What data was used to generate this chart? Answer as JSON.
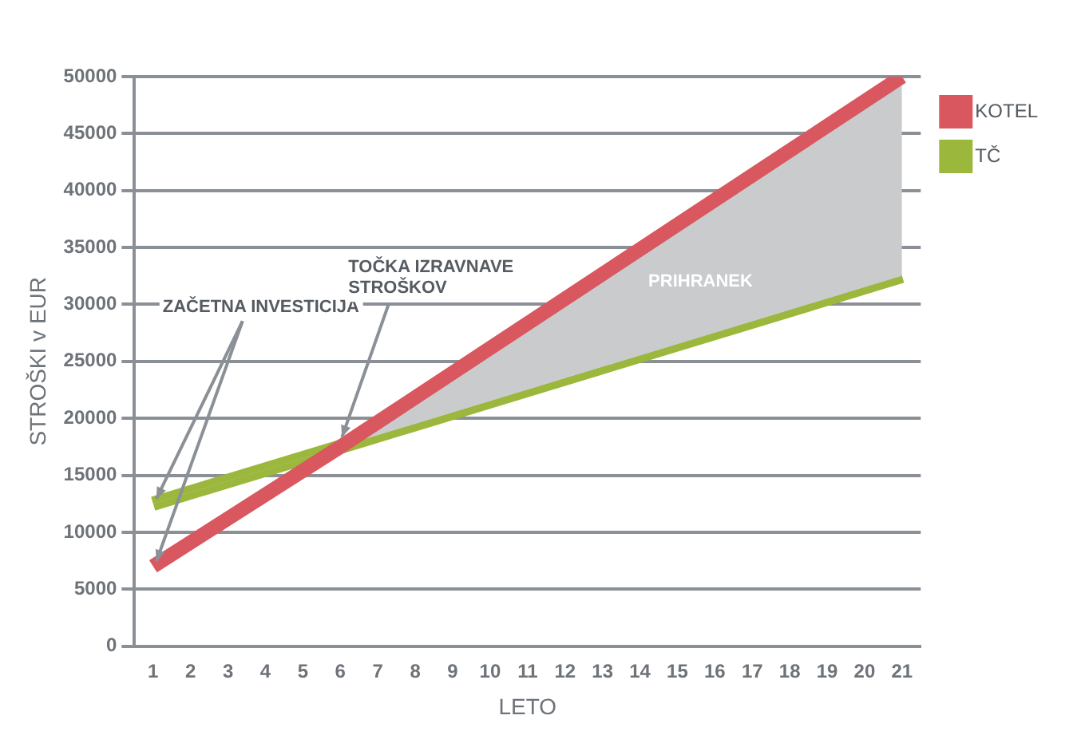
{
  "chart_data": {
    "type": "line",
    "xlabel": "LETO",
    "ylabel": "STROŠKI v EUR",
    "xlim": [
      0.5,
      21.5
    ],
    "xticks": [
      1,
      2,
      3,
      4,
      5,
      6,
      7,
      8,
      9,
      10,
      11,
      12,
      13,
      14,
      15,
      16,
      17,
      18,
      19,
      20,
      21
    ],
    "ylim": [
      0,
      50000
    ],
    "yticks": [
      0,
      5000,
      10000,
      15000,
      20000,
      25000,
      30000,
      35000,
      40000,
      45000,
      50000
    ],
    "grid": "y",
    "legend": "right",
    "marker": "none",
    "series": [
      {
        "name": "KOTEL",
        "color": "#d9575e",
        "x": [
          1,
          6,
          21
        ],
        "values": [
          7000,
          17500,
          50000
        ]
      },
      {
        "name": "TČ",
        "color": "#9bb83c",
        "x": [
          1,
          6,
          21
        ],
        "values": [
          12500,
          17500,
          32500
        ]
      }
    ],
    "annotations": [
      {
        "text": "ZAČETNA INVESTICIJA",
        "x": 1,
        "y": 7000
      },
      {
        "text": "TOČKA IZRAVNAVE STROŠKOV",
        "x": 6,
        "y": 17500
      },
      "PRIHRANEK"
    ]
  }
}
